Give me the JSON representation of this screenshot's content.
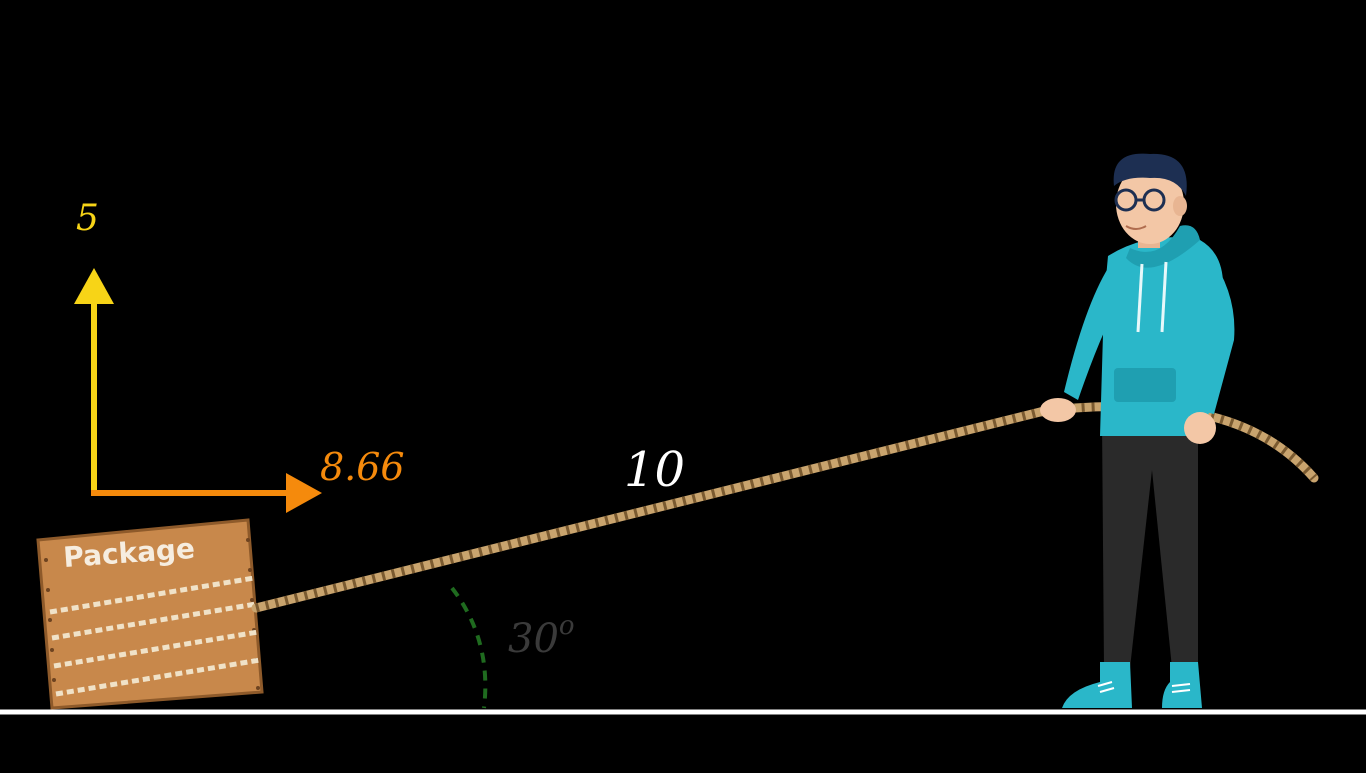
{
  "vectors": {
    "vertical_value": "5",
    "horizontal_value": "8.66",
    "rope_value": "10",
    "angle_value": "30",
    "angle_unit": "o"
  },
  "package": {
    "label": "Package"
  },
  "colors": {
    "background": "#000000",
    "vertical_arrow": "#f7d417",
    "horizontal_arrow": "#f58a0c",
    "rope_label": "#ffffff",
    "angle_label": "#3a3a3a",
    "angle_arc": "#1f6b1f",
    "ground": "#ffffff",
    "rope": "#c9a46e",
    "hoodie": "#2ab7c9",
    "pants": "#2a2a2a",
    "hair": "#1d2f52",
    "skin": "#f3c7a6",
    "shoes": "#2ab7c9",
    "package_wood": "#c8884b"
  },
  "icons": {
    "person": "person-pulling-rope-icon",
    "package": "wooden-package-icon"
  }
}
